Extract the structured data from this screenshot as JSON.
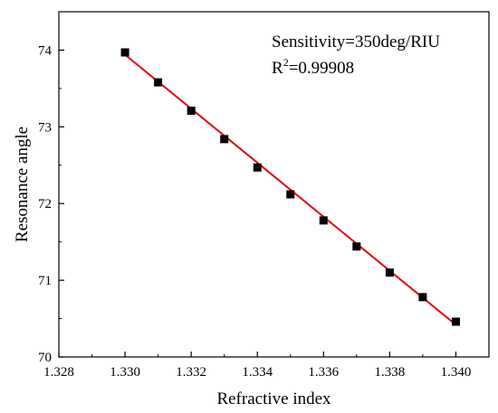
{
  "chart_data": {
    "type": "scatter",
    "title": "",
    "xlabel": "Refractive index",
    "ylabel": "Resonance angle",
    "xlim": [
      1.328,
      1.341
    ],
    "ylim": [
      70,
      74.5
    ],
    "xticks": [
      "1.328",
      "1.330",
      "1.332",
      "1.334",
      "1.336",
      "1.338",
      "1.340"
    ],
    "yticks": [
      "70",
      "71",
      "72",
      "73",
      "74"
    ],
    "grid": false,
    "legend": "none",
    "series": [
      {
        "x": [
          1.33,
          1.331,
          1.332,
          1.333,
          1.334,
          1.335,
          1.336,
          1.337,
          1.338,
          1.339,
          1.34
        ],
        "y": [
          73.97,
          73.58,
          73.21,
          72.84,
          72.47,
          72.12,
          71.78,
          71.44,
          71.1,
          70.78,
          70.46
        ],
        "marker": "square",
        "color": "#000000"
      }
    ],
    "fit_line": {
      "x": [
        1.33,
        1.34
      ],
      "y": [
        73.94,
        70.42
      ],
      "color": "#e8000b"
    },
    "annotations": {
      "sensitivity": "Sensitivity=350deg/RIU",
      "r2_prefix": "R",
      "r2_sup": "2",
      "r2_value": "=0.99908"
    }
  }
}
